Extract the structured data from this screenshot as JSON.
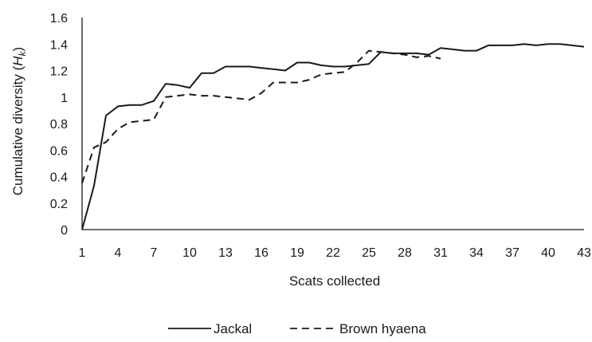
{
  "chart_data": {
    "type": "line",
    "title": "",
    "xlabel": "Scats collected",
    "ylabel_main": "Cumulative diversity (",
    "ylabel_var": "H",
    "ylabel_sub": "k",
    "ylabel_close": ")",
    "xlim": [
      1,
      43
    ],
    "ylim": [
      0,
      1.6
    ],
    "x_ticks": [
      "1",
      "4",
      "7",
      "10",
      "13",
      "16",
      "19",
      "22",
      "25",
      "28",
      "31",
      "34",
      "37",
      "40",
      "43"
    ],
    "y_ticks": [
      "0",
      "0.2",
      "0.4",
      "0.6",
      "0.8",
      "1",
      "1.2",
      "1.4",
      "1.6"
    ],
    "grid": false,
    "legend_position": "bottom",
    "series": [
      {
        "name": "Jackal",
        "style": "solid",
        "color": "#1a1a1a",
        "x": [
          1,
          2,
          3,
          4,
          5,
          6,
          7,
          8,
          9,
          10,
          11,
          12,
          13,
          14,
          15,
          16,
          17,
          18,
          19,
          20,
          21,
          22,
          23,
          24,
          25,
          26,
          27,
          28,
          29,
          30,
          31,
          32,
          33,
          34,
          35,
          36,
          37,
          38,
          39,
          40,
          41,
          42,
          43
        ],
        "y": [
          0.0,
          0.33,
          0.86,
          0.93,
          0.94,
          0.94,
          0.97,
          1.1,
          1.09,
          1.07,
          1.18,
          1.18,
          1.23,
          1.23,
          1.23,
          1.22,
          1.21,
          1.2,
          1.26,
          1.26,
          1.24,
          1.23,
          1.23,
          1.24,
          1.25,
          1.34,
          1.33,
          1.33,
          1.33,
          1.32,
          1.37,
          1.36,
          1.35,
          1.35,
          1.39,
          1.39,
          1.39,
          1.4,
          1.39,
          1.4,
          1.4,
          1.39,
          1.38
        ]
      },
      {
        "name": "Brown hyaena",
        "style": "dashed",
        "color": "#1a1a1a",
        "x": [
          1,
          2,
          3,
          4,
          5,
          6,
          7,
          8,
          9,
          10,
          11,
          12,
          13,
          14,
          15,
          16,
          17,
          18,
          19,
          20,
          21,
          22,
          23,
          24,
          25,
          26,
          27,
          28,
          29,
          30,
          31
        ],
        "y": [
          0.35,
          0.62,
          0.66,
          0.76,
          0.81,
          0.82,
          0.83,
          1.0,
          1.01,
          1.02,
          1.01,
          1.01,
          1.0,
          0.99,
          0.98,
          1.03,
          1.11,
          1.11,
          1.11,
          1.13,
          1.17,
          1.18,
          1.19,
          1.26,
          1.35,
          1.34,
          1.33,
          1.32,
          1.3,
          1.31,
          1.29
        ]
      }
    ]
  }
}
